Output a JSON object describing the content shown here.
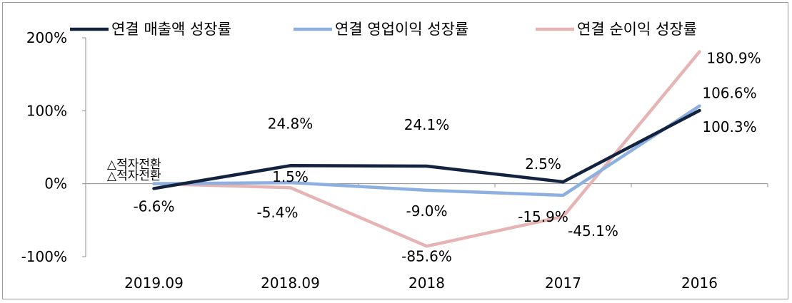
{
  "chart_data": {
    "type": "line",
    "categories": [
      "2019.09",
      "2018.09",
      "2018",
      "2017",
      "2016"
    ],
    "ylim": [
      -100,
      200
    ],
    "yticks": [
      -100,
      0,
      100,
      200
    ],
    "ytick_labels": [
      "-100%",
      "0%",
      "100%",
      "200%"
    ],
    "series": [
      {
        "name": "연결 매출액 성장률",
        "color": "#13233f",
        "values": [
          -6.6,
          24.8,
          24.1,
          2.5,
          100.3
        ],
        "labels": [
          "-6.6%",
          "24.8%",
          "24.1%",
          "2.5%",
          "100.3%"
        ]
      },
      {
        "name": "연결 영업이익 성장률",
        "color": "#8db0e0",
        "values": [
          0,
          1.5,
          -9.0,
          -15.9,
          106.6
        ],
        "labels": [
          "",
          "1.5%",
          "-9.0%",
          "-15.9%",
          "106.6%"
        ]
      },
      {
        "name": "연결 순이익 성장률",
        "color": "#e6b4b4",
        "values": [
          0,
          -5.4,
          -85.6,
          -45.1,
          180.9
        ],
        "labels": [
          "",
          "-5.4%",
          "-85.6%",
          "-45.1%",
          "180.9%"
        ]
      }
    ],
    "annotations": [
      "△적자전환",
      "△적자전환"
    ],
    "grid": false,
    "legend_position": "top"
  }
}
